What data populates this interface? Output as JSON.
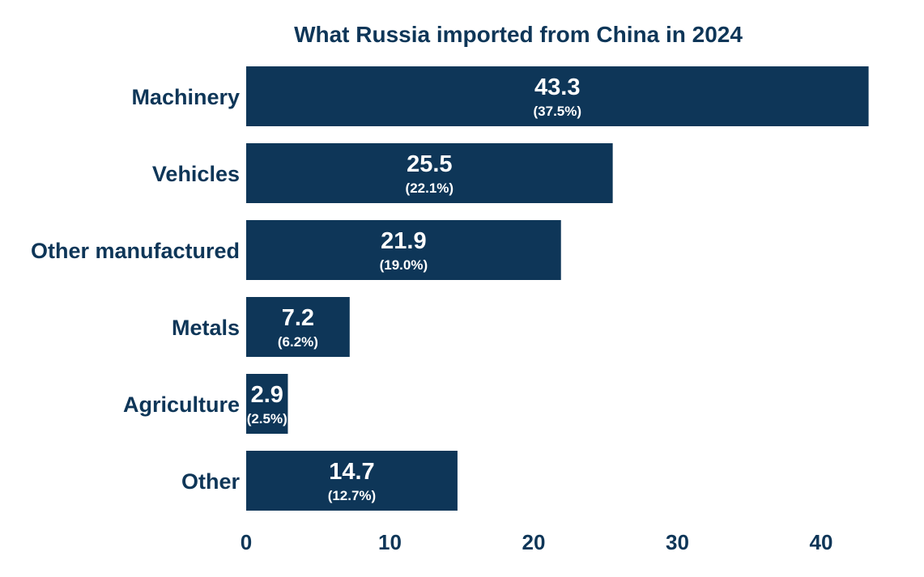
{
  "chart_data": {
    "type": "bar",
    "orientation": "horizontal",
    "title": "What Russia imported from China in 2024",
    "xlabel": "",
    "ylabel": "",
    "categories": [
      "Machinery",
      "Vehicles",
      "Other manufactured",
      "Metals",
      "Agriculture",
      "Other"
    ],
    "values": [
      43.3,
      25.5,
      21.9,
      7.2,
      2.9,
      14.7
    ],
    "value_labels": [
      "43.3",
      "25.5",
      "21.9",
      "7.2",
      "2.9",
      "14.7"
    ],
    "share_labels": [
      "(37.5%)",
      "(22.1%)",
      "(19.0%)",
      "(6.2%)",
      "(2.5%)",
      "(12.7%)"
    ],
    "xlim": [
      0,
      45
    ],
    "xticks": [
      0,
      10,
      20,
      30,
      40
    ],
    "xtick_labels": [
      "0",
      "10",
      "20",
      "30",
      "40"
    ],
    "grid": false,
    "legend": "none",
    "colors": {
      "bar": "#0e3658",
      "text": "#0e3658",
      "label": "#ffffff"
    }
  }
}
